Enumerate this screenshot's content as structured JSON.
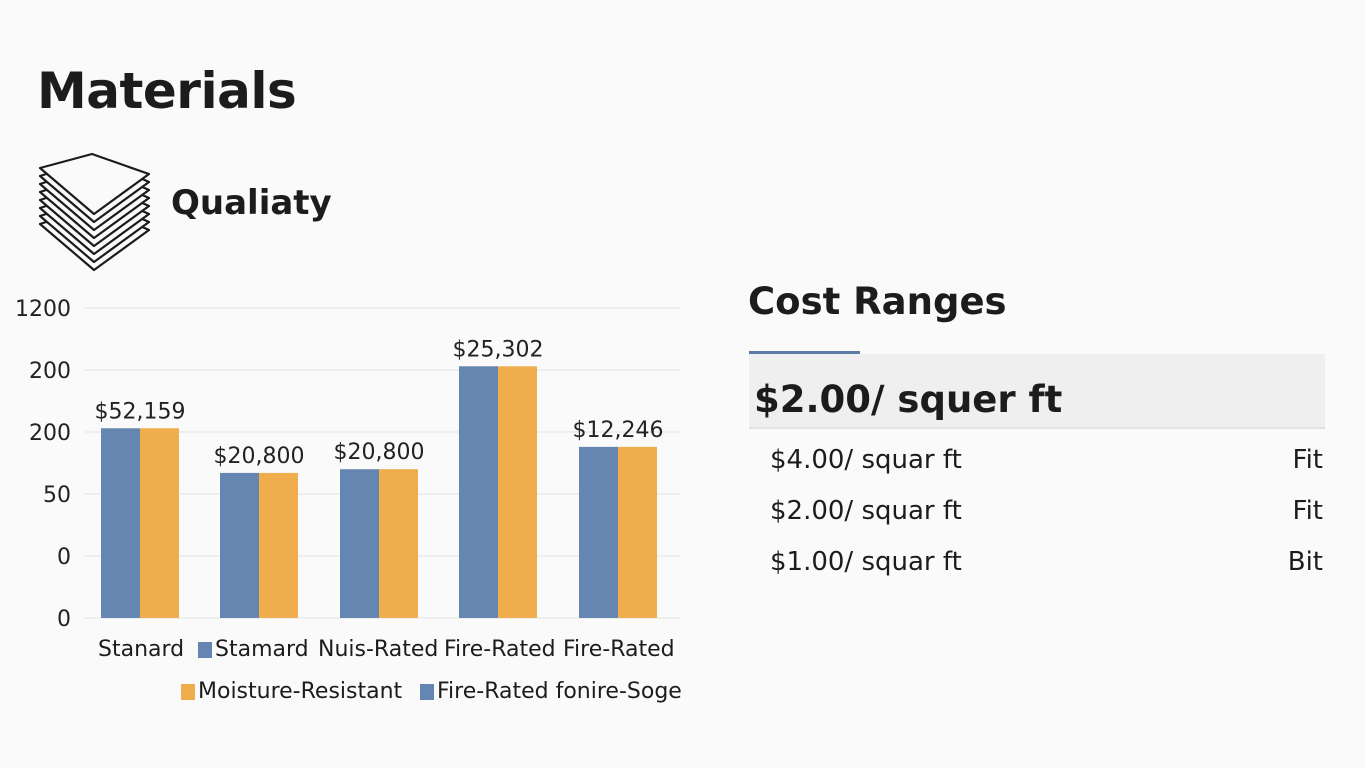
{
  "header": {
    "title": "Materials",
    "subtitle": "Qualiaty",
    "icon": "stacked-sheets-icon"
  },
  "colors": {
    "blue": "#6586b0",
    "orange": "#f0ad4e",
    "grid": "#e6e6e6",
    "accent": "#5a7ba6"
  },
  "chart_data": {
    "type": "bar",
    "title": "",
    "xlabel": "",
    "ylabel": "",
    "y_tick_labels": [
      "0",
      "0",
      "50",
      "200",
      "200",
      "1200"
    ],
    "value_units": "gridline steps (axis labels are non-linear as printed)",
    "ylim": [
      0,
      5
    ],
    "grid": true,
    "categories": [
      "Stanard",
      "Stamard",
      "Nuis-Rated",
      "Fire-Rated",
      "Fire-Rated"
    ],
    "category_markers": [
      null,
      "blue",
      null,
      null,
      null
    ],
    "series": [
      {
        "name": "Fire-Rated fonire-Soge",
        "color": "#6586b0",
        "values": [
          3.06,
          2.34,
          2.4,
          4.06,
          2.76
        ]
      },
      {
        "name": "Moisture-Resistant",
        "color": "#f0ad4e",
        "values": [
          3.06,
          2.34,
          2.4,
          4.06,
          2.76
        ]
      }
    ],
    "data_labels": [
      "$52,159",
      "$20,800",
      "$20,800",
      "$25,302",
      "$12,246"
    ],
    "legend": [
      {
        "label": "Moisture-Resistant",
        "color": "#f0ad4e"
      },
      {
        "label": "Fire-Rated fonire-Soge",
        "color": "#6586b0"
      }
    ],
    "legend_position": "bottom"
  },
  "cost": {
    "title": "Cost Ranges",
    "highlight": "$2.00/ squer ft",
    "rows": [
      {
        "price": "$4.00/ squar ft",
        "tag": "Fit"
      },
      {
        "price": "$2.00/ squar ft",
        "tag": "Fit"
      },
      {
        "price": "$1.00/ squar ft",
        "tag": "Bit"
      }
    ]
  }
}
